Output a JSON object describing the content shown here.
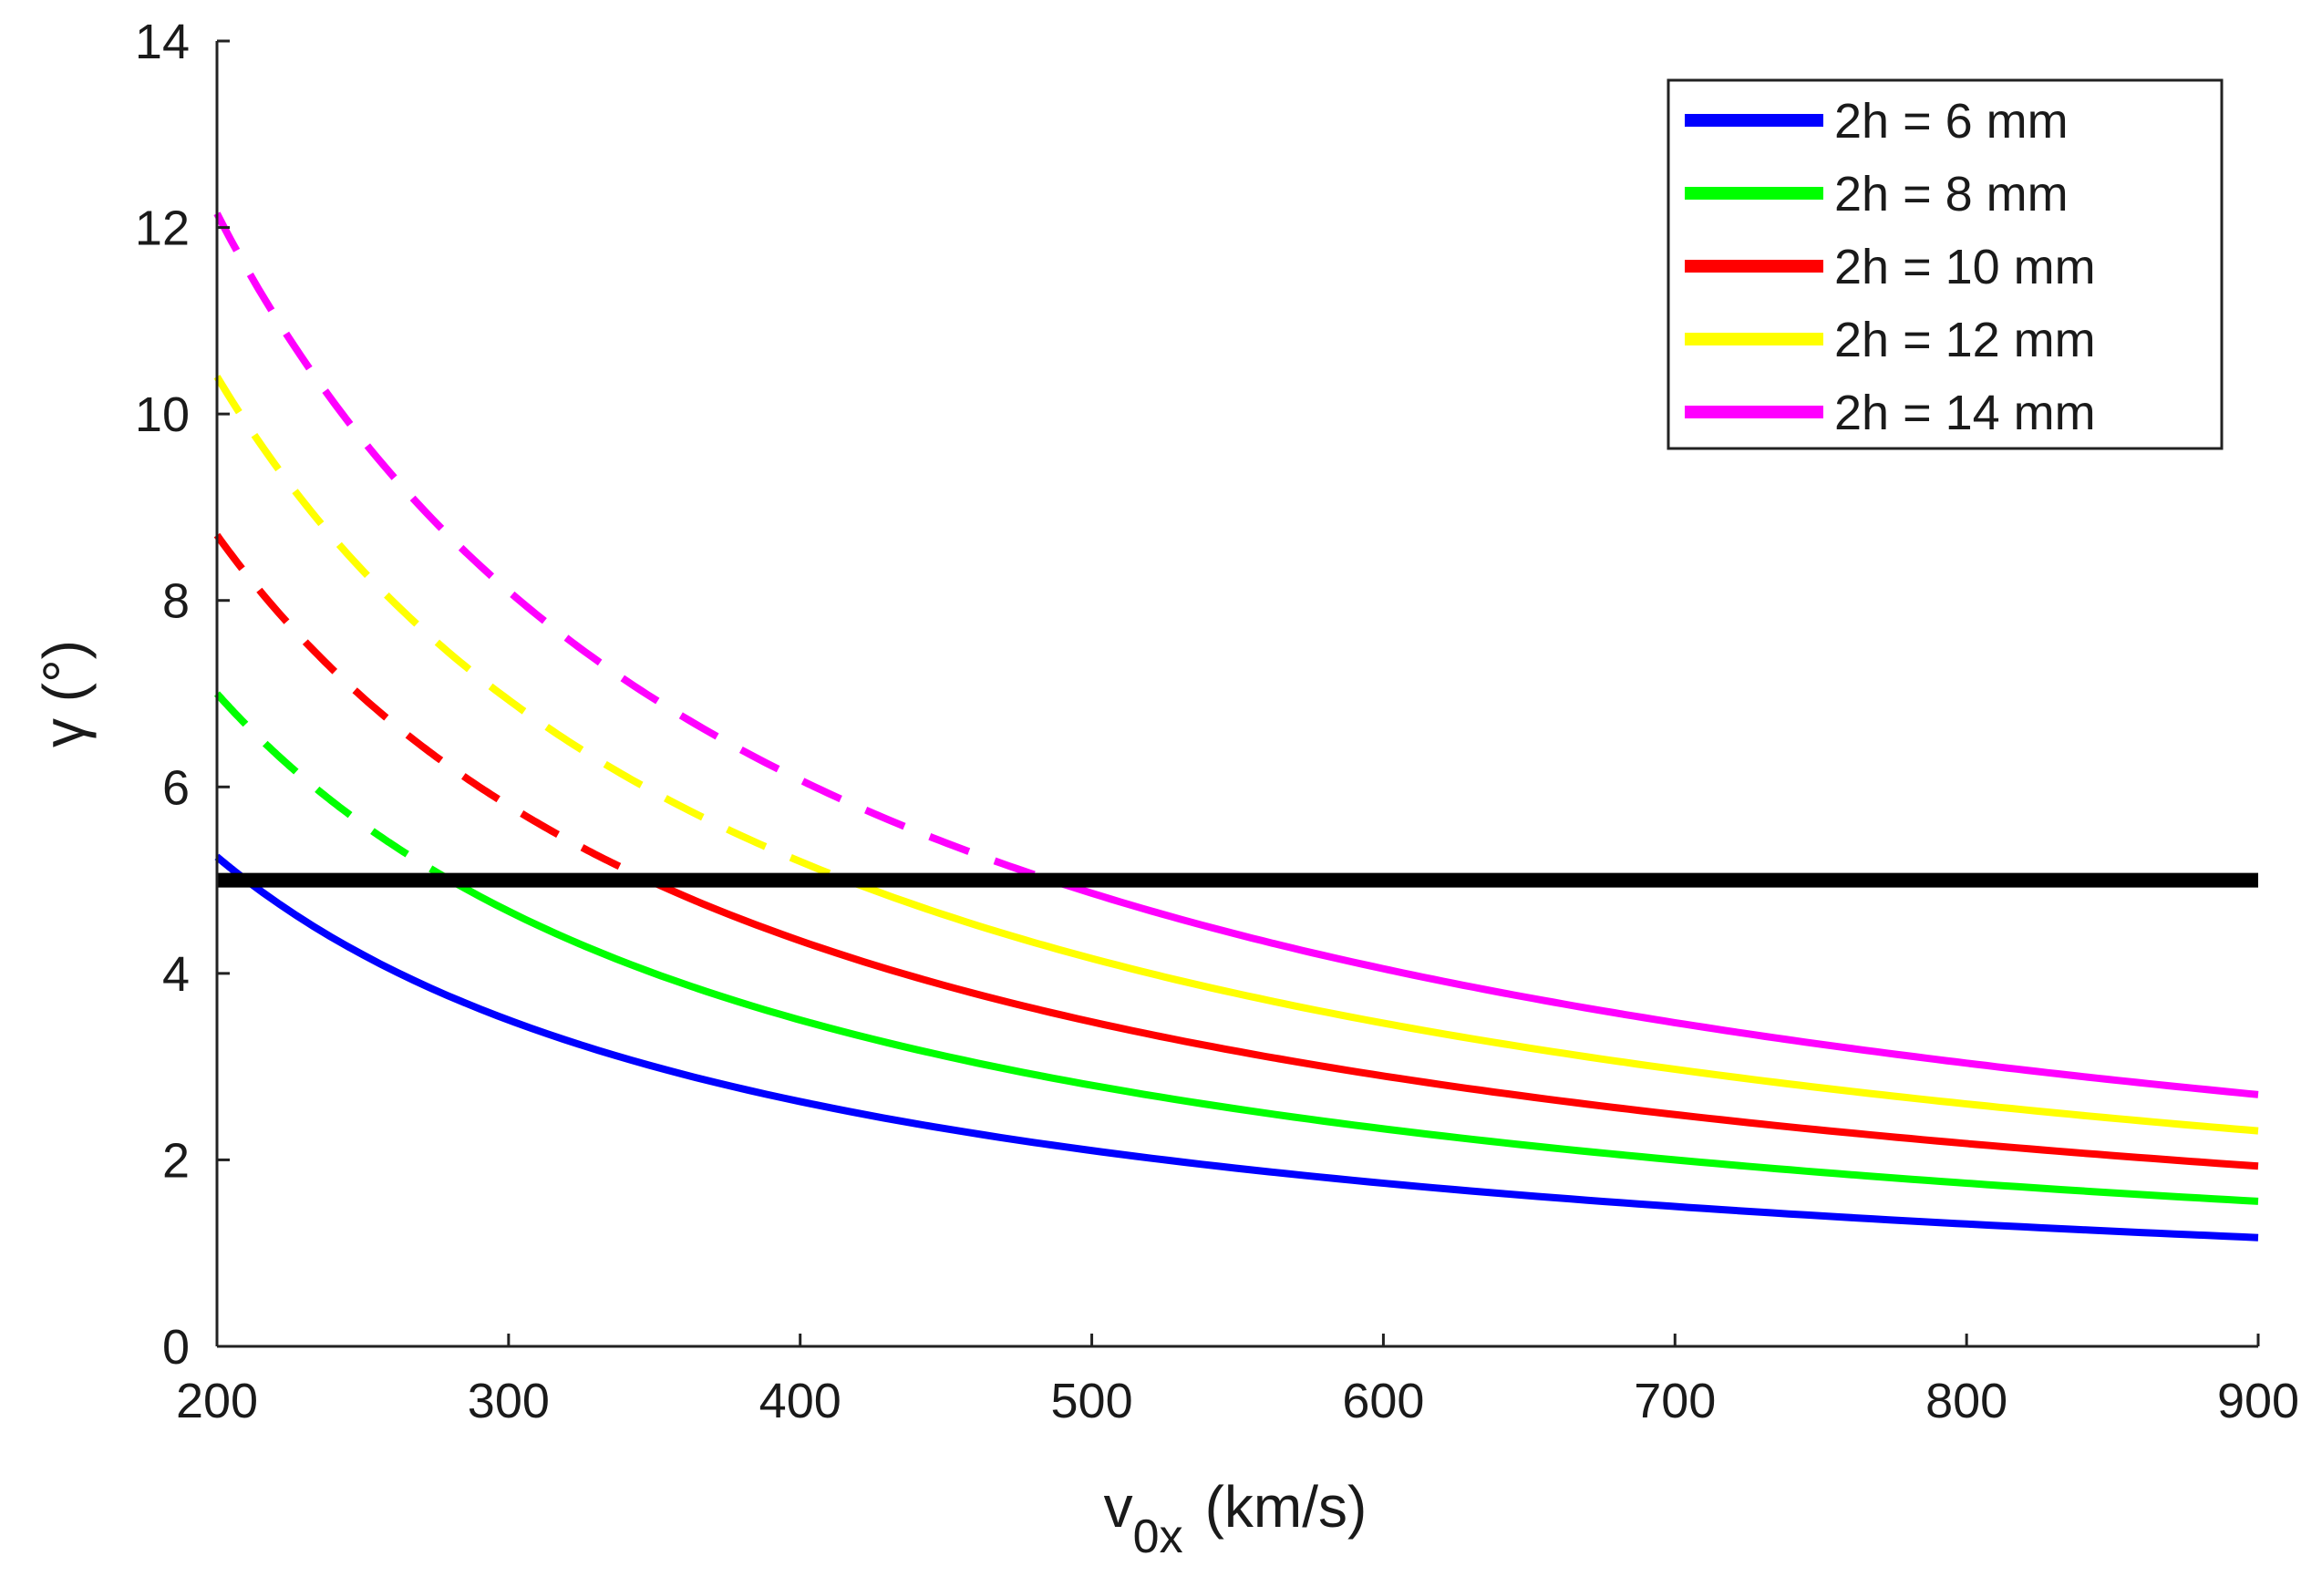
{
  "chart_data": {
    "type": "line",
    "title": "",
    "xlabel": {
      "main": "v",
      "subscript": "0x",
      "unit": "(km/s)"
    },
    "ylabel": "γ (°)",
    "xlim": [
      200,
      900
    ],
    "ylim": [
      0,
      14
    ],
    "xticks": [
      "200",
      "300",
      "400",
      "500",
      "600",
      "700",
      "800",
      "900"
    ],
    "yticks": [
      "0",
      "2",
      "4",
      "6",
      "8",
      "10",
      "12",
      "14"
    ],
    "threshold": {
      "value": 5,
      "color": "#000000"
    },
    "legend_position": "top-right",
    "note": "curves are dashed where γ > 5° and solid where γ ≤ 5°",
    "series": [
      {
        "name": "2h = 6 mm",
        "color": "#0000ff",
        "k": 1050
      },
      {
        "name": "2h = 8 mm",
        "color": "#00ff00",
        "k": 1400
      },
      {
        "name": "2h = 10 mm",
        "color": "#ff0000",
        "k": 1740
      },
      {
        "name": "2h = 12 mm",
        "color": "#ffff00",
        "k": 2080
      },
      {
        "name": "2h = 14 mm",
        "color": "#ff00ff",
        "k": 2430
      }
    ]
  }
}
